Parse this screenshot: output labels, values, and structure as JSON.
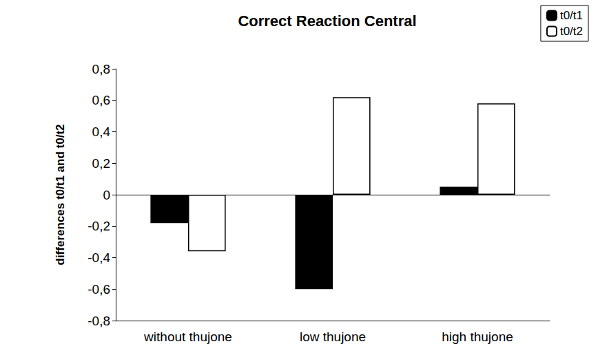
{
  "chart_data": {
    "type": "bar",
    "title": "Correct Reaction Central",
    "y_label": "differences t0/t1 and t0/t2",
    "categories": [
      "without thujone",
      "low thujone",
      "high thujone"
    ],
    "series": [
      {
        "name": "t0/t1",
        "color": "#000000",
        "values": [
          -0.18,
          -0.6,
          0.05
        ]
      },
      {
        "name": "t0/t2",
        "color": "#ffffff",
        "values": [
          -0.36,
          0.62,
          0.58
        ]
      }
    ],
    "ylim": [
      -0.8,
      0.8
    ],
    "yticks": [
      {
        "value": -0.8,
        "label": "-0,8"
      },
      {
        "value": -0.6,
        "label": "-0,6"
      },
      {
        "value": -0.4,
        "label": "-0,4"
      },
      {
        "value": -0.2,
        "label": "-0,2"
      },
      0,
      {
        "value": 0.2,
        "label": "0,2"
      },
      {
        "value": 0.4,
        "label": "0,4"
      },
      {
        "value": 0.6,
        "label": "0,6"
      },
      {
        "value": 0.8,
        "label": "0,8"
      }
    ],
    "grid": false,
    "legend": "upper right"
  }
}
